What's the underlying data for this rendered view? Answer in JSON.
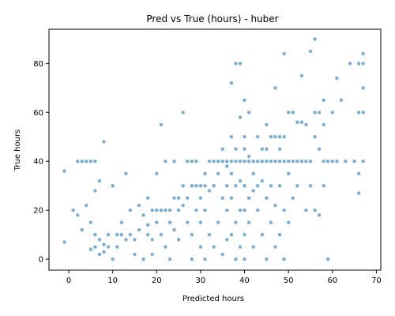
{
  "chart_data": {
    "type": "scatter",
    "title": "Pred vs True (hours) - huber",
    "xlabel": "Predicted hours",
    "ylabel": "True hours",
    "xlim": [
      -4.5,
      71
    ],
    "ylim": [
      -4.5,
      94
    ],
    "xticks": [
      "0",
      "10",
      "20",
      "30",
      "40",
      "50",
      "60",
      "70"
    ],
    "yticks": [
      "0",
      "20",
      "40",
      "60",
      "80"
    ],
    "grid": false,
    "legend": "none",
    "color": "#1f77b4",
    "opacity": 0.6,
    "points": [
      [
        -1,
        36
      ],
      [
        -1,
        7
      ],
      [
        1,
        20
      ],
      [
        2,
        18
      ],
      [
        2,
        40
      ],
      [
        3,
        40
      ],
      [
        3,
        12
      ],
      [
        4,
        40
      ],
      [
        4,
        22
      ],
      [
        5,
        40
      ],
      [
        5,
        15
      ],
      [
        5,
        4
      ],
      [
        6,
        5
      ],
      [
        6,
        10
      ],
      [
        6,
        28
      ],
      [
        6,
        40
      ],
      [
        7,
        32
      ],
      [
        7,
        8
      ],
      [
        7,
        2
      ],
      [
        8,
        48
      ],
      [
        8,
        6
      ],
      [
        8,
        3
      ],
      [
        9,
        10
      ],
      [
        9,
        5
      ],
      [
        10,
        0
      ],
      [
        10,
        30
      ],
      [
        11,
        10
      ],
      [
        11,
        5
      ],
      [
        12,
        10
      ],
      [
        12,
        15
      ],
      [
        13,
        35
      ],
      [
        13,
        8
      ],
      [
        14,
        20
      ],
      [
        14,
        10
      ],
      [
        15,
        2
      ],
      [
        15,
        8
      ],
      [
        16,
        12
      ],
      [
        16,
        22
      ],
      [
        17,
        18
      ],
      [
        17,
        0
      ],
      [
        18,
        25
      ],
      [
        18,
        14
      ],
      [
        18,
        10
      ],
      [
        19,
        20
      ],
      [
        19,
        8
      ],
      [
        19,
        2
      ],
      [
        20,
        20
      ],
      [
        20,
        15
      ],
      [
        20,
        35
      ],
      [
        21,
        55
      ],
      [
        21,
        20
      ],
      [
        21,
        10
      ],
      [
        22,
        20
      ],
      [
        22,
        40
      ],
      [
        22,
        5
      ],
      [
        23,
        20
      ],
      [
        23,
        15
      ],
      [
        23,
        0
      ],
      [
        24,
        25
      ],
      [
        24,
        12
      ],
      [
        24,
        40
      ],
      [
        25,
        25
      ],
      [
        25,
        20
      ],
      [
        25,
        8
      ],
      [
        26,
        60
      ],
      [
        26,
        22
      ],
      [
        26,
        30
      ],
      [
        27,
        40
      ],
      [
        27,
        25
      ],
      [
        27,
        15
      ],
      [
        28,
        40
      ],
      [
        28,
        30
      ],
      [
        28,
        10
      ],
      [
        28,
        0
      ],
      [
        29,
        30
      ],
      [
        29,
        20
      ],
      [
        29,
        40
      ],
      [
        30,
        30
      ],
      [
        30,
        25
      ],
      [
        30,
        15
      ],
      [
        30,
        5
      ],
      [
        31,
        35
      ],
      [
        31,
        30
      ],
      [
        31,
        20
      ],
      [
        31,
        0
      ],
      [
        32,
        40
      ],
      [
        32,
        28
      ],
      [
        32,
        10
      ],
      [
        33,
        40
      ],
      [
        33,
        30
      ],
      [
        33,
        5
      ],
      [
        34,
        40
      ],
      [
        34,
        35
      ],
      [
        34,
        15
      ],
      [
        35,
        45
      ],
      [
        35,
        40
      ],
      [
        35,
        25
      ],
      [
        35,
        2
      ],
      [
        36,
        40
      ],
      [
        36,
        38
      ],
      [
        36,
        30
      ],
      [
        36,
        20
      ],
      [
        36,
        8
      ],
      [
        37,
        72
      ],
      [
        37,
        50
      ],
      [
        37,
        40
      ],
      [
        37,
        35
      ],
      [
        37,
        25
      ],
      [
        37,
        10
      ],
      [
        38,
        80
      ],
      [
        38,
        45
      ],
      [
        38,
        40
      ],
      [
        38,
        30
      ],
      [
        38,
        15
      ],
      [
        38,
        0
      ],
      [
        39,
        80
      ],
      [
        39,
        58
      ],
      [
        39,
        40
      ],
      [
        39,
        32
      ],
      [
        39,
        20
      ],
      [
        39,
        5
      ],
      [
        40,
        65
      ],
      [
        40,
        50
      ],
      [
        40,
        45
      ],
      [
        40,
        40
      ],
      [
        40,
        30
      ],
      [
        40,
        20
      ],
      [
        40,
        10
      ],
      [
        40,
        0
      ],
      [
        41,
        60
      ],
      [
        41,
        42
      ],
      [
        41,
        40
      ],
      [
        41,
        25
      ],
      [
        41,
        15
      ],
      [
        42,
        40
      ],
      [
        42,
        35
      ],
      [
        42,
        28
      ],
      [
        42,
        5
      ],
      [
        43,
        50
      ],
      [
        43,
        40
      ],
      [
        43,
        30
      ],
      [
        43,
        20
      ],
      [
        44,
        45
      ],
      [
        44,
        40
      ],
      [
        44,
        32
      ],
      [
        44,
        10
      ],
      [
        45,
        55
      ],
      [
        45,
        45
      ],
      [
        45,
        40
      ],
      [
        45,
        25
      ],
      [
        45,
        0
      ],
      [
        46,
        50
      ],
      [
        46,
        40
      ],
      [
        46,
        30
      ],
      [
        46,
        15
      ],
      [
        47,
        70
      ],
      [
        47,
        50
      ],
      [
        47,
        40
      ],
      [
        47,
        22
      ],
      [
        47,
        5
      ],
      [
        48,
        50
      ],
      [
        48,
        45
      ],
      [
        48,
        40
      ],
      [
        48,
        30
      ],
      [
        48,
        10
      ],
      [
        49,
        84
      ],
      [
        49,
        50
      ],
      [
        49,
        40
      ],
      [
        49,
        20
      ],
      [
        49,
        0
      ],
      [
        50,
        60
      ],
      [
        50,
        40
      ],
      [
        50,
        35
      ],
      [
        50,
        15
      ],
      [
        51,
        60
      ],
      [
        51,
        40
      ],
      [
        51,
        25
      ],
      [
        52,
        56
      ],
      [
        52,
        40
      ],
      [
        52,
        30
      ],
      [
        53,
        75
      ],
      [
        53,
        56
      ],
      [
        53,
        40
      ],
      [
        54,
        55
      ],
      [
        54,
        40
      ],
      [
        54,
        20
      ],
      [
        55,
        85
      ],
      [
        55,
        40
      ],
      [
        55,
        30
      ],
      [
        56,
        90
      ],
      [
        56,
        60
      ],
      [
        56,
        50
      ],
      [
        56,
        20
      ],
      [
        57,
        60
      ],
      [
        57,
        45
      ],
      [
        57,
        18
      ],
      [
        58,
        65
      ],
      [
        58,
        55
      ],
      [
        58,
        40
      ],
      [
        58,
        30
      ],
      [
        59,
        40
      ],
      [
        59,
        0
      ],
      [
        60,
        60
      ],
      [
        60,
        40
      ],
      [
        61,
        74
      ],
      [
        61,
        40
      ],
      [
        62,
        65
      ],
      [
        63,
        40
      ],
      [
        64,
        80
      ],
      [
        65,
        40
      ],
      [
        66,
        80
      ],
      [
        66,
        60
      ],
      [
        66,
        27
      ],
      [
        66,
        35
      ],
      [
        67,
        84
      ],
      [
        67,
        80
      ],
      [
        67,
        70
      ],
      [
        67,
        60
      ],
      [
        67,
        40
      ]
    ]
  }
}
